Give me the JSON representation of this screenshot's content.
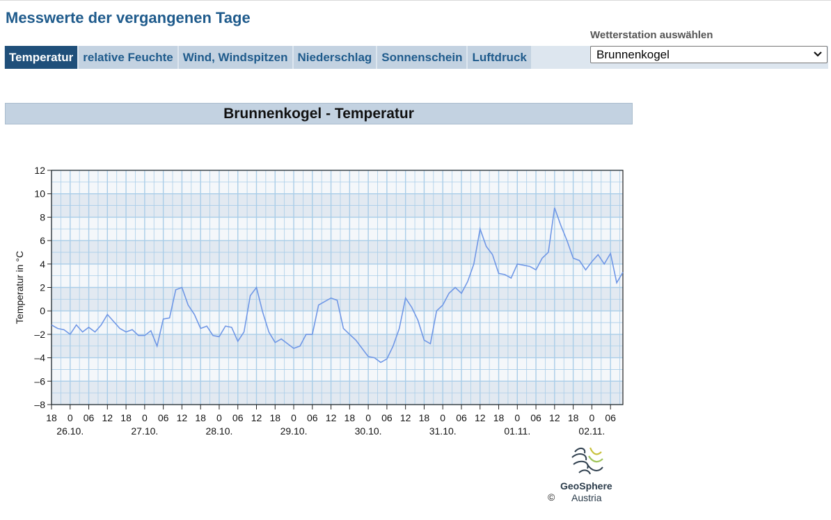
{
  "page": {
    "title": "Messwerte der vergangenen Tage"
  },
  "tabs": [
    {
      "label": "Temperatur",
      "active": true
    },
    {
      "label": "relative Feuchte",
      "active": false
    },
    {
      "label": "Wind, Windspitzen",
      "active": false
    },
    {
      "label": "Niederschlag",
      "active": false
    },
    {
      "label": "Sonnenschein",
      "active": false
    },
    {
      "label": "Luftdruck",
      "active": false
    }
  ],
  "station": {
    "label": "Wetterstation auswählen",
    "selected": "Brunnenkogel"
  },
  "colors": {
    "accent": "#1f5b8c",
    "tab_active": "#1f4f7a",
    "tab_inactive": "#c3d2e1",
    "line": "#6f97e6",
    "band_dark": "#e2e9f1",
    "band_light": "#f4f7fa",
    "grid": "#a9cde8"
  },
  "chart_data": {
    "type": "line",
    "title": "Brunnenkogel - Temperatur",
    "xlabel": "",
    "ylabel": "Temperatur in °C",
    "ylim": [
      -8,
      12
    ],
    "xlim": [
      "2025-10-25T18:00",
      "2025-11-02T10:00"
    ],
    "yticks": [
      12,
      10,
      8,
      6,
      4,
      2,
      0,
      -2,
      -4,
      -6,
      -8
    ],
    "x_tick_labels": [
      "0",
      "06",
      "12",
      "18"
    ],
    "day_labels": [
      "26.10.",
      "27.10.",
      "28.10.",
      "29.10.",
      "30.10.",
      "31.10.",
      "01.11.",
      "02.11."
    ],
    "grid": true,
    "x": [
      "2025-10-25T18:00",
      "2025-10-25T20:00",
      "2025-10-25T22:00",
      "2025-10-26T00:00",
      "2025-10-26T02:00",
      "2025-10-26T04:00",
      "2025-10-26T06:00",
      "2025-10-26T08:00",
      "2025-10-26T10:00",
      "2025-10-26T12:00",
      "2025-10-26T14:00",
      "2025-10-26T16:00",
      "2025-10-26T18:00",
      "2025-10-26T20:00",
      "2025-10-26T22:00",
      "2025-10-27T00:00",
      "2025-10-27T02:00",
      "2025-10-27T04:00",
      "2025-10-27T06:00",
      "2025-10-27T08:00",
      "2025-10-27T10:00",
      "2025-10-27T12:00",
      "2025-10-27T14:00",
      "2025-10-27T16:00",
      "2025-10-27T18:00",
      "2025-10-27T20:00",
      "2025-10-27T22:00",
      "2025-10-28T00:00",
      "2025-10-28T02:00",
      "2025-10-28T04:00",
      "2025-10-28T06:00",
      "2025-10-28T08:00",
      "2025-10-28T10:00",
      "2025-10-28T12:00",
      "2025-10-28T14:00",
      "2025-10-28T16:00",
      "2025-10-28T18:00",
      "2025-10-28T20:00",
      "2025-10-28T22:00",
      "2025-10-29T00:00",
      "2025-10-29T02:00",
      "2025-10-29T04:00",
      "2025-10-29T06:00",
      "2025-10-29T08:00",
      "2025-10-29T10:00",
      "2025-10-29T12:00",
      "2025-10-29T14:00",
      "2025-10-29T16:00",
      "2025-10-29T18:00",
      "2025-10-29T20:00",
      "2025-10-29T22:00",
      "2025-10-30T00:00",
      "2025-10-30T02:00",
      "2025-10-30T04:00",
      "2025-10-30T06:00",
      "2025-10-30T08:00",
      "2025-10-30T10:00",
      "2025-10-30T12:00",
      "2025-10-30T14:00",
      "2025-10-30T16:00",
      "2025-10-30T18:00",
      "2025-10-30T20:00",
      "2025-10-30T22:00",
      "2025-10-31T00:00",
      "2025-10-31T02:00",
      "2025-10-31T04:00",
      "2025-10-31T06:00",
      "2025-10-31T08:00",
      "2025-10-31T10:00",
      "2025-10-31T12:00",
      "2025-10-31T14:00",
      "2025-10-31T16:00",
      "2025-10-31T18:00",
      "2025-10-31T20:00",
      "2025-10-31T22:00",
      "2025-11-01T00:00",
      "2025-11-01T02:00",
      "2025-11-01T04:00",
      "2025-11-01T06:00",
      "2025-11-01T08:00",
      "2025-11-01T10:00",
      "2025-11-01T12:00",
      "2025-11-01T14:00",
      "2025-11-01T16:00",
      "2025-11-01T18:00",
      "2025-11-01T20:00",
      "2025-11-01T22:00",
      "2025-11-02T00:00",
      "2025-11-02T02:00",
      "2025-11-02T04:00",
      "2025-11-02T06:00",
      "2025-11-02T08:00",
      "2025-11-02T10:00"
    ],
    "series": [
      {
        "values": [
          -1.2,
          -1.5,
          -1.6,
          -2.0,
          -1.2,
          -1.8,
          -1.4,
          -1.8,
          -1.2,
          -0.3,
          -0.9,
          -1.5,
          -1.8,
          -1.6,
          -2.1,
          -2.1,
          -1.7,
          -3.0,
          -0.7,
          -0.6,
          1.8,
          2.0,
          0.5,
          -0.3,
          -1.5,
          -1.3,
          -2.1,
          -2.2,
          -1.3,
          -1.4,
          -2.6,
          -1.8,
          1.3,
          2.0,
          -0.1,
          -1.8,
          -2.7,
          -2.4,
          -2.8,
          -3.2,
          -3.0,
          -2.0,
          -2.0,
          0.5,
          0.8,
          1.1,
          0.9,
          -1.5,
          -2.0,
          -2.5,
          -3.2,
          -3.9,
          -4.0,
          -4.4,
          -4.1,
          -3.0,
          -1.5,
          1.1,
          0.3,
          -0.8,
          -2.5,
          -2.8,
          0.0,
          0.5,
          1.5,
          2.0,
          1.5,
          2.5,
          4.0,
          7.0,
          5.5,
          4.8,
          3.2,
          3.1,
          2.8,
          4.0,
          3.9,
          3.8,
          3.5,
          4.5,
          5.0,
          8.8,
          7.3,
          6.0,
          4.5,
          4.3,
          3.5,
          4.2,
          4.8,
          4.0,
          4.9,
          2.4,
          3.3
        ]
      }
    ]
  },
  "footer": {
    "copyright": "©",
    "logo_line1": "GeoSphere",
    "logo_line2": "Austria"
  }
}
